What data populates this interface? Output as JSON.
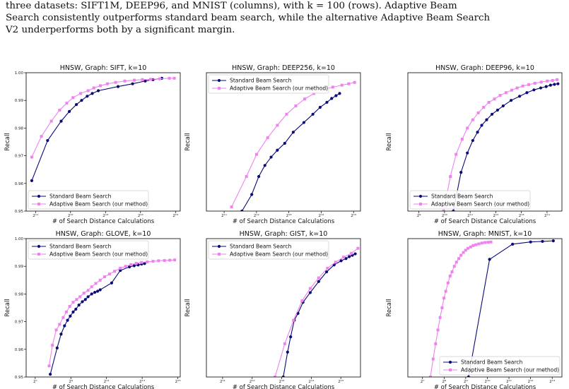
{
  "caption": {
    "line1": "three datasets: SIFT1M, DEEP96, and MNIST (columns), with k = 100 (rows). Adaptive Beam",
    "line2": "Search consistently outperforms standard beam search, while the alternative Adaptive Beam Search",
    "line3": "V2 underperforms both by a significant margin."
  },
  "colors": {
    "standard": "#0a0a78",
    "adaptive": "#ee82ee"
  },
  "chart_data": [
    {
      "type": "line",
      "title": "HNSW, Graph: SIFT, k=10",
      "xlabel": "# of Search Distance Calculations",
      "ylabel": "Recall",
      "xscale": "log2",
      "xlim": [
        1700,
        36000
      ],
      "ylim": [
        0.95,
        1.0
      ],
      "xticks": [
        2048,
        4096,
        8192,
        16384,
        32768
      ],
      "xtick_labels": [
        "2¹¹",
        "2¹²",
        "2¹³",
        "2¹⁴",
        "2¹⁵"
      ],
      "yticks": [
        0.95,
        0.96,
        0.97,
        0.98,
        0.99,
        1.0
      ],
      "ytick_labels": [
        "0.95",
        "0.96",
        "0.97",
        "0.98",
        "0.99",
        "1.00"
      ],
      "legend": "lower-left",
      "series": [
        {
          "name": "Standard Beam Search",
          "marker": "circle",
          "x": [
            1900,
            2600,
            3400,
            4000,
            4600,
            5100,
            5700,
            6300,
            7100,
            10500,
            14000,
            18000,
            21000,
            25000
          ],
          "y": [
            0.961,
            0.9755,
            0.9825,
            0.986,
            0.9885,
            0.99,
            0.9915,
            0.9925,
            0.9935,
            0.995,
            0.996,
            0.997,
            0.9975,
            0.998
          ]
        },
        {
          "name": "Adaptive Beam Search (our method)",
          "marker": "square",
          "x": [
            1900,
            2300,
            2800,
            3300,
            3800,
            4300,
            5000,
            5800,
            6500,
            7400,
            8500,
            10000,
            12000,
            14500,
            17000,
            20000,
            24000,
            29000,
            32000
          ],
          "y": [
            0.9695,
            0.977,
            0.9825,
            0.9865,
            0.989,
            0.991,
            0.9925,
            0.9935,
            0.9945,
            0.9953,
            0.996,
            0.9965,
            0.997,
            0.9973,
            0.9975,
            0.9976,
            0.9978,
            0.998,
            0.998
          ]
        }
      ]
    },
    {
      "type": "line",
      "title": "HNSW, Graph: DEEP256, k=10",
      "xlabel": "# of Search Distance Calculations",
      "ylabel": "Recall",
      "xscale": "log2",
      "xlim": [
        1400,
        38000
      ],
      "ylim": [
        0.95,
        1.0
      ],
      "xticks": [
        2048,
        4096,
        8192,
        16384,
        32768
      ],
      "xtick_labels": [
        "2¹¹",
        "2¹²",
        "2¹³",
        "2¹⁴",
        "2¹⁵"
      ],
      "yticks": [],
      "ytick_labels": [],
      "legend": "upper-left",
      "series": [
        {
          "name": "Standard Beam Search",
          "marker": "circle",
          "x": [
            3000,
            3700,
            4300,
            4900,
            5600,
            6400,
            7500,
            9000,
            11300,
            13700,
            16000,
            18500,
            20500,
            22500,
            24300
          ],
          "y": [
            0.95,
            0.956,
            0.9625,
            0.9665,
            0.9695,
            0.972,
            0.9745,
            0.9785,
            0.982,
            0.985,
            0.9875,
            0.9893,
            0.9907,
            0.9917,
            0.9925
          ]
        },
        {
          "name": "Adaptive Beam Search (our method)",
          "marker": "square",
          "x": [
            2400,
            3300,
            4100,
            5200,
            6400,
            7800,
            9500,
            11500,
            14000,
            17000,
            21000,
            25500,
            29500,
            33500
          ],
          "y": [
            0.9515,
            0.9625,
            0.9705,
            0.9765,
            0.981,
            0.985,
            0.988,
            0.9905,
            0.9925,
            0.9938,
            0.9948,
            0.9955,
            0.996,
            0.9965
          ]
        }
      ]
    },
    {
      "type": "line",
      "title": "HNSW, Graph: DEEP96, k=10",
      "xlabel": "# of Search Distance Calculations",
      "ylabel": "Recall",
      "xscale": "log2",
      "xlim": [
        380,
        24500
      ],
      "ylim": [
        0.95,
        1.0
      ],
      "xticks": [
        512,
        1024,
        2048,
        4096,
        8192,
        16384
      ],
      "xtick_labels": [
        "2⁹",
        "2¹⁰",
        "2¹¹",
        "2¹²",
        "2¹³",
        "2¹⁴"
      ],
      "yticks": [],
      "ytick_labels": [],
      "legend": "lower-left",
      "series": [
        {
          "name": "Standard Beam Search",
          "marker": "circle",
          "x": [
            1300,
            1600,
            1900,
            2200,
            2500,
            2800,
            3200,
            3700,
            4300,
            5000,
            6200,
            7800,
            9500,
            11500,
            13800,
            16000,
            18000,
            20000,
            22000
          ],
          "y": [
            0.95,
            0.964,
            0.971,
            0.9755,
            0.9785,
            0.981,
            0.983,
            0.985,
            0.9865,
            0.988,
            0.99,
            0.9915,
            0.9928,
            0.9938,
            0.9945,
            0.995,
            0.9955,
            0.9958,
            0.996
          ]
        },
        {
          "name": "Adaptive Beam Search (our method)",
          "marker": "square",
          "x": [
            1000,
            1200,
            1400,
            1650,
            1900,
            2200,
            2550,
            2950,
            3400,
            3950,
            4600,
            5400,
            6300,
            7300,
            8500,
            10000,
            11800,
            14000,
            16500,
            19000,
            21500
          ],
          "y": [
            0.95,
            0.9625,
            0.9705,
            0.976,
            0.98,
            0.983,
            0.9855,
            0.9875,
            0.9893,
            0.9905,
            0.9918,
            0.9928,
            0.9937,
            0.9945,
            0.9952,
            0.9957,
            0.9962,
            0.9966,
            0.997,
            0.9972,
            0.9975
          ]
        }
      ]
    },
    {
      "type": "line",
      "title": "HNSW, Graph: GLOVE, k=10",
      "xlabel": "# of Search Distance Calculations",
      "ylabel": "Recall",
      "xscale": "log2",
      "xlim": [
        90,
        36000
      ],
      "ylim": [
        0.95,
        1.0
      ],
      "xticks": [
        128,
        512,
        2048,
        8192,
        32768
      ],
      "xtick_labels": [
        "2⁷",
        "2⁹",
        "2¹¹",
        "2¹³",
        "2¹⁵"
      ],
      "yticks": [
        0.95,
        0.96,
        0.97,
        0.98,
        0.99,
        1.0
      ],
      "ytick_labels": [
        "0.95",
        "0.96",
        "0.97",
        "0.98",
        "0.99",
        "1.00"
      ],
      "legend": "upper-left",
      "series": [
        {
          "name": "Standard Beam Search",
          "marker": "circle",
          "x": [
            230,
            300,
            350,
            400,
            450,
            500,
            560,
            620,
            700,
            800,
            900,
            1000,
            1150,
            1300,
            1450,
            1600,
            2500,
            3500,
            5000,
            6000,
            7000,
            8000,
            9000
          ],
          "y": [
            0.951,
            0.9605,
            0.9655,
            0.9685,
            0.9705,
            0.972,
            0.9735,
            0.9745,
            0.976,
            0.9772,
            0.978,
            0.979,
            0.98,
            0.9806,
            0.981,
            0.9815,
            0.984,
            0.9885,
            0.9898,
            0.9902,
            0.9905,
            0.9908,
            0.991
          ]
        },
        {
          "name": "Adaptive Beam Search (our method)",
          "marker": "square",
          "x": [
            220,
            250,
            290,
            330,
            380,
            430,
            490,
            560,
            640,
            730,
            850,
            1000,
            1150,
            1350,
            1600,
            1900,
            2300,
            2800,
            3500,
            4300,
            5300,
            6500,
            8000,
            10000,
            12500,
            15500,
            19500,
            24000,
            29000
          ],
          "y": [
            0.954,
            0.9615,
            0.967,
            0.969,
            0.9715,
            0.9735,
            0.9755,
            0.977,
            0.978,
            0.979,
            0.9803,
            0.9813,
            0.9826,
            0.9838,
            0.985,
            0.9862,
            0.9872,
            0.9882,
            0.9893,
            0.99,
            0.9906,
            0.9911,
            0.9914,
            0.9916,
            0.9918,
            0.992,
            0.9921,
            0.9922,
            0.9923
          ]
        }
      ]
    },
    {
      "type": "line",
      "title": "HNSW, Graph: GIST, k=10",
      "xlabel": "# of Search Distance Calculations",
      "ylabel": "Recall",
      "xscale": "log2",
      "xlim": [
        1400,
        52000
      ],
      "ylim": [
        0.95,
        1.0
      ],
      "xticks": [
        2048,
        4096,
        8192,
        16384,
        32768
      ],
      "xtick_labels": [
        "2¹¹",
        "2¹²",
        "2¹³",
        "2¹⁴",
        "2¹⁵"
      ],
      "yticks": [],
      "ytick_labels": [],
      "legend": "upper-left",
      "series": [
        {
          "name": "Standard Beam Search",
          "marker": "circle",
          "x": [
            8500,
            9400,
            10100,
            11000,
            12000,
            13500,
            16000,
            19500,
            23500,
            28000,
            33000,
            37000,
            40000,
            43000,
            46000
          ],
          "y": [
            0.95,
            0.959,
            0.9645,
            0.9705,
            0.973,
            0.977,
            0.9805,
            0.9845,
            0.988,
            0.9905,
            0.992,
            0.9928,
            0.9935,
            0.994,
            0.9945
          ]
        },
        {
          "name": "Adaptive Beam Search (our method)",
          "marker": "square",
          "x": [
            7000,
            8800,
            10800,
            13200,
            16000,
            19500,
            24000,
            29000,
            35000,
            42000,
            49000
          ],
          "y": [
            0.95,
            0.962,
            0.9705,
            0.9775,
            0.982,
            0.9858,
            0.9893,
            0.9915,
            0.9933,
            0.9947,
            0.9965
          ]
        }
      ]
    },
    {
      "type": "line",
      "title": "HNSW, Graph: MNIST, k=10",
      "xlabel": "# of Search Distance Calculations",
      "ylabel": "Recall",
      "xscale": "log2",
      "xlim": [
        80,
        11200
      ],
      "ylim": [
        0.95,
        1.0
      ],
      "xticks": [
        128,
        256,
        512,
        1024,
        2048,
        4096,
        8192
      ],
      "xtick_labels": [
        "2⁷",
        "2⁸",
        "2⁹",
        "2¹⁰",
        "2¹¹",
        "2¹²",
        "2¹³"
      ],
      "yticks": [],
      "ytick_labels": [],
      "legend": "lower-right",
      "series": [
        {
          "name": "Standard Beam Search",
          "marker": "circle",
          "x": [
            560,
            1100,
            2300,
            4100,
            6000,
            8500
          ],
          "y": [
            0.95,
            0.9925,
            0.998,
            0.9988,
            0.999,
            0.9992
          ]
        },
        {
          "name": "Adaptive Beam Search (our method)",
          "marker": "square",
          "x": [
            165,
            180,
            195,
            210,
            225,
            240,
            255,
            270,
            290,
            310,
            330,
            355,
            380,
            410,
            440,
            475,
            510,
            550,
            600,
            650,
            710,
            780,
            860,
            950,
            1050,
            1150
          ],
          "y": [
            0.95,
            0.9565,
            0.962,
            0.967,
            0.9715,
            0.975,
            0.9785,
            0.981,
            0.984,
            0.9865,
            0.988,
            0.99,
            0.9915,
            0.9928,
            0.994,
            0.995,
            0.9958,
            0.9965,
            0.997,
            0.9975,
            0.9978,
            0.9981,
            0.9984,
            0.9986,
            0.9987,
            0.9988
          ]
        }
      ]
    }
  ]
}
